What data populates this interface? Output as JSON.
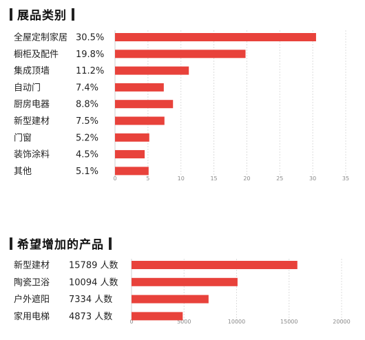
{
  "chart_data": [
    {
      "type": "bar",
      "orientation": "horizontal",
      "title": "展品类别",
      "categories": [
        "全屋定制家居",
        "橱柜及配件",
        "集成顶墙",
        "自动门",
        "厨房电器",
        "新型建材",
        "门窗",
        "装饰涂料",
        "其他"
      ],
      "values": [
        30.5,
        19.8,
        11.2,
        7.4,
        8.8,
        7.5,
        5.2,
        4.5,
        5.1
      ],
      "value_labels": [
        "30.5%",
        "19.8%",
        "11.2%",
        "7.4%",
        "8.8%",
        "7.5%",
        "5.2%",
        "4.5%",
        "5.1%"
      ],
      "xticks": [
        "0",
        "5",
        "10",
        "15",
        "20",
        "25",
        "30",
        "35"
      ],
      "xlim": [
        0,
        35
      ],
      "grid": true,
      "bar_color": "#e8423b"
    },
    {
      "type": "bar",
      "orientation": "horizontal",
      "title": "希望增加的产品",
      "categories": [
        "新型建材",
        "陶瓷卫浴",
        "户外遮阳",
        "家用电梯"
      ],
      "values": [
        15789,
        10094,
        7334,
        4873
      ],
      "value_labels": [
        "15789 人数",
        "10094 人数",
        "7334 人数",
        "4873 人数"
      ],
      "xticks": [
        "0",
        "5000",
        "10000",
        "15000",
        "20000"
      ],
      "xlim": [
        0,
        20000
      ],
      "grid": true,
      "bar_color": "#e8423b"
    }
  ]
}
